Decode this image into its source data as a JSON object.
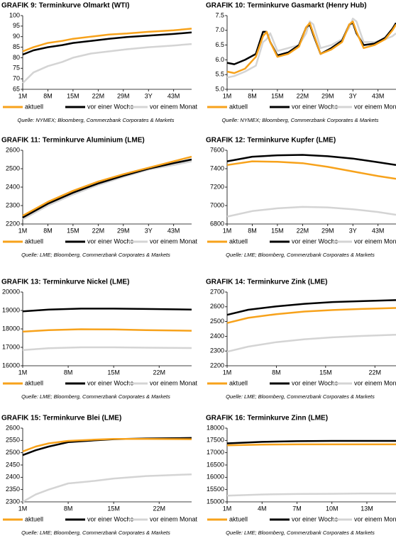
{
  "chart_data": [
    {
      "type": "line",
      "title": "GRAFIK 9: Terminkurve Olmarkt (WTI)",
      "source": "Quelle: NYMEX; Bloomberg, Commerzbank Corporates & Markets",
      "xlim": [
        1,
        48
      ],
      "xticks": [
        {
          "value": 1,
          "label": "1M"
        },
        {
          "value": 8,
          "label": "8M"
        },
        {
          "value": 15,
          "label": "15M"
        },
        {
          "value": 22,
          "label": "22M"
        },
        {
          "value": 29,
          "label": "29M"
        },
        {
          "value": 36,
          "label": "3Y"
        },
        {
          "value": 43,
          "label": "43M"
        }
      ],
      "ylim": [
        65,
        100
      ],
      "yticks": [
        65,
        70,
        75,
        80,
        85,
        90,
        95,
        100
      ],
      "x": [
        1,
        4,
        8,
        12,
        15,
        20,
        25,
        30,
        36,
        43,
        48
      ],
      "series": [
        {
          "name": "aktuell",
          "color": "#f7a21b",
          "values": [
            83,
            85,
            87,
            88,
            89,
            90,
            91,
            91.5,
            92.3,
            93,
            93.8
          ]
        },
        {
          "name": "vor einer Woche",
          "color": "#000000",
          "values": [
            81.5,
            83.5,
            85,
            86,
            87,
            88,
            89,
            89.8,
            90.5,
            91.3,
            92
          ]
        },
        {
          "name": "vor einem Monat",
          "color": "#d4d4d4",
          "values": [
            68,
            73,
            76,
            78,
            80,
            82,
            83,
            84,
            85,
            85.8,
            86.5
          ]
        }
      ]
    },
    {
      "type": "line",
      "title": "GRAFIK 10: Terminkurve Gasmarkt (Henry Hub)",
      "source": "Quelle: NYMEX; Bloomberg, Commerzbank Corporates & Markets",
      "xlim": [
        1,
        48
      ],
      "xticks": [
        {
          "value": 1,
          "label": "1M"
        },
        {
          "value": 8,
          "label": "8M"
        },
        {
          "value": 15,
          "label": "15M"
        },
        {
          "value": 22,
          "label": "22M"
        },
        {
          "value": 29,
          "label": "29M"
        },
        {
          "value": 36,
          "label": "3Y"
        },
        {
          "value": 43,
          "label": "43M"
        }
      ],
      "ylim": [
        5,
        7.5
      ],
      "yticks": [
        {
          "value": 5,
          "label": "5.0"
        },
        5.5,
        {
          "value": 6,
          "label": "6.0"
        },
        6.5,
        {
          "value": 7,
          "label": "7.0"
        },
        7.5
      ],
      "x": [
        1,
        3,
        6,
        9,
        11,
        12,
        13,
        15,
        18,
        21,
        23,
        24,
        25,
        27,
        30,
        33,
        35,
        36,
        37,
        39,
        42,
        45,
        47,
        48
      ],
      "series": [
        {
          "name": "aktuell",
          "color": "#f7a21b",
          "values": [
            5.6,
            5.55,
            5.7,
            6.1,
            6.8,
            6.95,
            6.6,
            6.1,
            6.2,
            6.45,
            7.1,
            7.25,
            6.9,
            6.2,
            6.35,
            6.6,
            7.2,
            7.3,
            6.95,
            6.4,
            6.5,
            6.7,
            7.0,
            7.2
          ]
        },
        {
          "name": "vor einer Woche",
          "color": "#000000",
          "values": [
            5.9,
            5.85,
            6.0,
            6.2,
            6.95,
            6.95,
            6.6,
            6.15,
            6.25,
            6.5,
            7.1,
            7.2,
            6.85,
            6.2,
            6.4,
            6.65,
            7.2,
            7.25,
            6.9,
            6.5,
            6.55,
            6.75,
            7.05,
            7.25
          ]
        },
        {
          "name": "vor einem Monat",
          "color": "#d4d4d4",
          "values": [
            5.4,
            5.45,
            5.6,
            5.8,
            6.6,
            6.7,
            6.9,
            6.3,
            6.4,
            6.5,
            6.9,
            7.3,
            7.2,
            6.4,
            6.5,
            6.7,
            7.1,
            7.4,
            7.3,
            6.6,
            6.6,
            6.7,
            6.8,
            6.9
          ]
        }
      ]
    },
    {
      "type": "line",
      "title": "GRAFIK 11: Terminkurve Aluminium (LME)",
      "source": "Quelle: LME; Bloomberg, Commerzbank Corporates & Markets",
      "xlim": [
        1,
        48
      ],
      "xticks": [
        {
          "value": 1,
          "label": "1M"
        },
        {
          "value": 8,
          "label": "8M"
        },
        {
          "value": 15,
          "label": "15M"
        },
        {
          "value": 22,
          "label": "22M"
        },
        {
          "value": 29,
          "label": "29M"
        },
        {
          "value": 36,
          "label": "3Y"
        },
        {
          "value": 43,
          "label": "43M"
        }
      ],
      "ylim": [
        2200,
        2600
      ],
      "yticks": [
        2200,
        2300,
        2400,
        2500,
        2600
      ],
      "x": [
        1,
        8,
        15,
        22,
        29,
        36,
        43,
        48
      ],
      "series": [
        {
          "name": "aktuell",
          "color": "#f7a21b",
          "values": [
            2245,
            2320,
            2380,
            2430,
            2470,
            2505,
            2540,
            2565
          ]
        },
        {
          "name": "vor einer Woche",
          "color": "#000000",
          "values": [
            2235,
            2310,
            2370,
            2420,
            2462,
            2500,
            2530,
            2550
          ]
        },
        {
          "name": "vor einem Monat",
          "color": "#d4d4d4",
          "values": [
            2225,
            2300,
            2360,
            2412,
            2455,
            2495,
            2520,
            2540
          ]
        }
      ]
    },
    {
      "type": "line",
      "title": "GRAFIK 12: Terminkurve Kupfer (LME)",
      "source": "Quelle: LME; Bloomberg, Commerzbank Corporates & Markets",
      "xlim": [
        1,
        48
      ],
      "xticks": [
        {
          "value": 1,
          "label": "1M"
        },
        {
          "value": 8,
          "label": "8M"
        },
        {
          "value": 15,
          "label": "15M"
        },
        {
          "value": 22,
          "label": "22M"
        },
        {
          "value": 29,
          "label": "29M"
        },
        {
          "value": 36,
          "label": "3Y"
        },
        {
          "value": 43,
          "label": "43M"
        }
      ],
      "ylim": [
        6800,
        7600
      ],
      "yticks": [
        6800,
        7000,
        7200,
        7400,
        7600
      ],
      "x": [
        1,
        8,
        15,
        22,
        29,
        36,
        43,
        48
      ],
      "series": [
        {
          "name": "aktuell",
          "color": "#f7a21b",
          "values": [
            7440,
            7480,
            7475,
            7460,
            7420,
            7370,
            7320,
            7290
          ]
        },
        {
          "name": "vor einer Woche",
          "color": "#000000",
          "values": [
            7480,
            7530,
            7545,
            7550,
            7535,
            7510,
            7470,
            7440
          ]
        },
        {
          "name": "vor einem Monat",
          "color": "#d4d4d4",
          "values": [
            6880,
            6940,
            6970,
            6985,
            6980,
            6960,
            6930,
            6900
          ]
        }
      ]
    },
    {
      "type": "line",
      "title": "GRAFIK 13:  Terminkurve Nickel (LME)",
      "source": "Quelle: LME; Bloomberg, Commerzbank Corporates & Markets",
      "xlim": [
        1,
        27
      ],
      "xticks": [
        {
          "value": 1,
          "label": "1M"
        },
        {
          "value": 8,
          "label": "8M"
        },
        {
          "value": 15,
          "label": "15M"
        },
        {
          "value": 22,
          "label": "22M"
        }
      ],
      "ylim": [
        16000,
        20000
      ],
      "yticks": [
        16000,
        17000,
        18000,
        19000,
        20000
      ],
      "x": [
        1,
        5,
        10,
        15,
        20,
        27
      ],
      "series": [
        {
          "name": "aktuell",
          "color": "#f7a21b",
          "values": [
            17850,
            17930,
            17980,
            17970,
            17930,
            17900
          ]
        },
        {
          "name": "vor einer Woche",
          "color": "#000000",
          "values": [
            18950,
            19050,
            19100,
            19100,
            19080,
            19050
          ]
        },
        {
          "name": "vor einem Monat",
          "color": "#d4d4d4",
          "values": [
            16850,
            16950,
            17000,
            17000,
            16980,
            16960
          ]
        }
      ]
    },
    {
      "type": "line",
      "title": "GRAFIK 14: Terminkurve Zink (LME)",
      "source": "Quelle: LME; Bloomberg, Commerzbank Corporates & Markets",
      "xlim": [
        1,
        25
      ],
      "xticks": [
        {
          "value": 1,
          "label": "1M"
        },
        {
          "value": 8,
          "label": "8M"
        },
        {
          "value": 15,
          "label": "15M"
        },
        {
          "value": 22,
          "label": "22M"
        }
      ],
      "ylim": [
        2200,
        2700
      ],
      "yticks": [
        2200,
        2300,
        2400,
        2500,
        2600,
        2700
      ],
      "x": [
        1,
        4,
        8,
        12,
        16,
        20,
        25
      ],
      "series": [
        {
          "name": "aktuell",
          "color": "#f7a21b",
          "values": [
            2490,
            2525,
            2550,
            2568,
            2578,
            2585,
            2592
          ]
        },
        {
          "name": "vor einer Woche",
          "color": "#000000",
          "values": [
            2545,
            2580,
            2603,
            2620,
            2632,
            2638,
            2645
          ]
        },
        {
          "name": "vor einem Monat",
          "color": "#d4d4d4",
          "values": [
            2295,
            2330,
            2360,
            2380,
            2393,
            2402,
            2410
          ]
        }
      ]
    },
    {
      "type": "line",
      "title": "GRAFIK 15: Terminkurve Blei (LME)",
      "source": "Quelle: LME; Bloomberg, Commerzbank Corporates & Markets",
      "xlim": [
        1,
        27
      ],
      "xticks": [
        {
          "value": 1,
          "label": "1M"
        },
        {
          "value": 8,
          "label": "8M"
        },
        {
          "value": 15,
          "label": "15M"
        },
        {
          "value": 22,
          "label": "22M"
        }
      ],
      "ylim": [
        2300,
        2600
      ],
      "yticks": [
        2300,
        2350,
        2400,
        2450,
        2500,
        2550,
        2600
      ],
      "x": [
        1,
        3,
        5,
        8,
        12,
        15,
        20,
        27
      ],
      "series": [
        {
          "name": "aktuell",
          "color": "#f7a21b",
          "values": [
            2505,
            2525,
            2538,
            2548,
            2553,
            2556,
            2556,
            2555
          ]
        },
        {
          "name": "vor einer Woche",
          "color": "#000000",
          "values": [
            2490,
            2510,
            2525,
            2543,
            2550,
            2555,
            2558,
            2560
          ]
        },
        {
          "name": "vor einem Monat",
          "color": "#d4d4d4",
          "values": [
            2300,
            2330,
            2350,
            2375,
            2385,
            2395,
            2405,
            2412
          ]
        }
      ]
    },
    {
      "type": "line",
      "title": "GRAFIK 16: Terminkurve Zinn (LME)",
      "source": "Quelle: LME; Bloomberg, Commerzbank Corporates & Markets",
      "xlim": [
        1,
        15.5
      ],
      "xticks": [
        {
          "value": 1,
          "label": "1M"
        },
        {
          "value": 4,
          "label": "4M"
        },
        {
          "value": 7,
          "label": "7M"
        },
        {
          "value": 10,
          "label": "10M"
        },
        {
          "value": 13,
          "label": "13M"
        }
      ],
      "ylim": [
        15000,
        18000
      ],
      "yticks": [
        15000,
        15500,
        16000,
        16500,
        17000,
        17500,
        18000
      ],
      "x": [
        1,
        4,
        7,
        10,
        13,
        15.5
      ],
      "series": [
        {
          "name": "aktuell",
          "color": "#f7a21b",
          "values": [
            17300,
            17330,
            17340,
            17340,
            17340,
            17340
          ]
        },
        {
          "name": "vor einer Woche",
          "color": "#000000",
          "values": [
            17380,
            17440,
            17470,
            17480,
            17480,
            17480
          ]
        },
        {
          "name": "vor einem Monat",
          "color": "#d4d4d4",
          "values": [
            15250,
            15300,
            15320,
            15330,
            15340,
            15340
          ]
        }
      ]
    }
  ]
}
